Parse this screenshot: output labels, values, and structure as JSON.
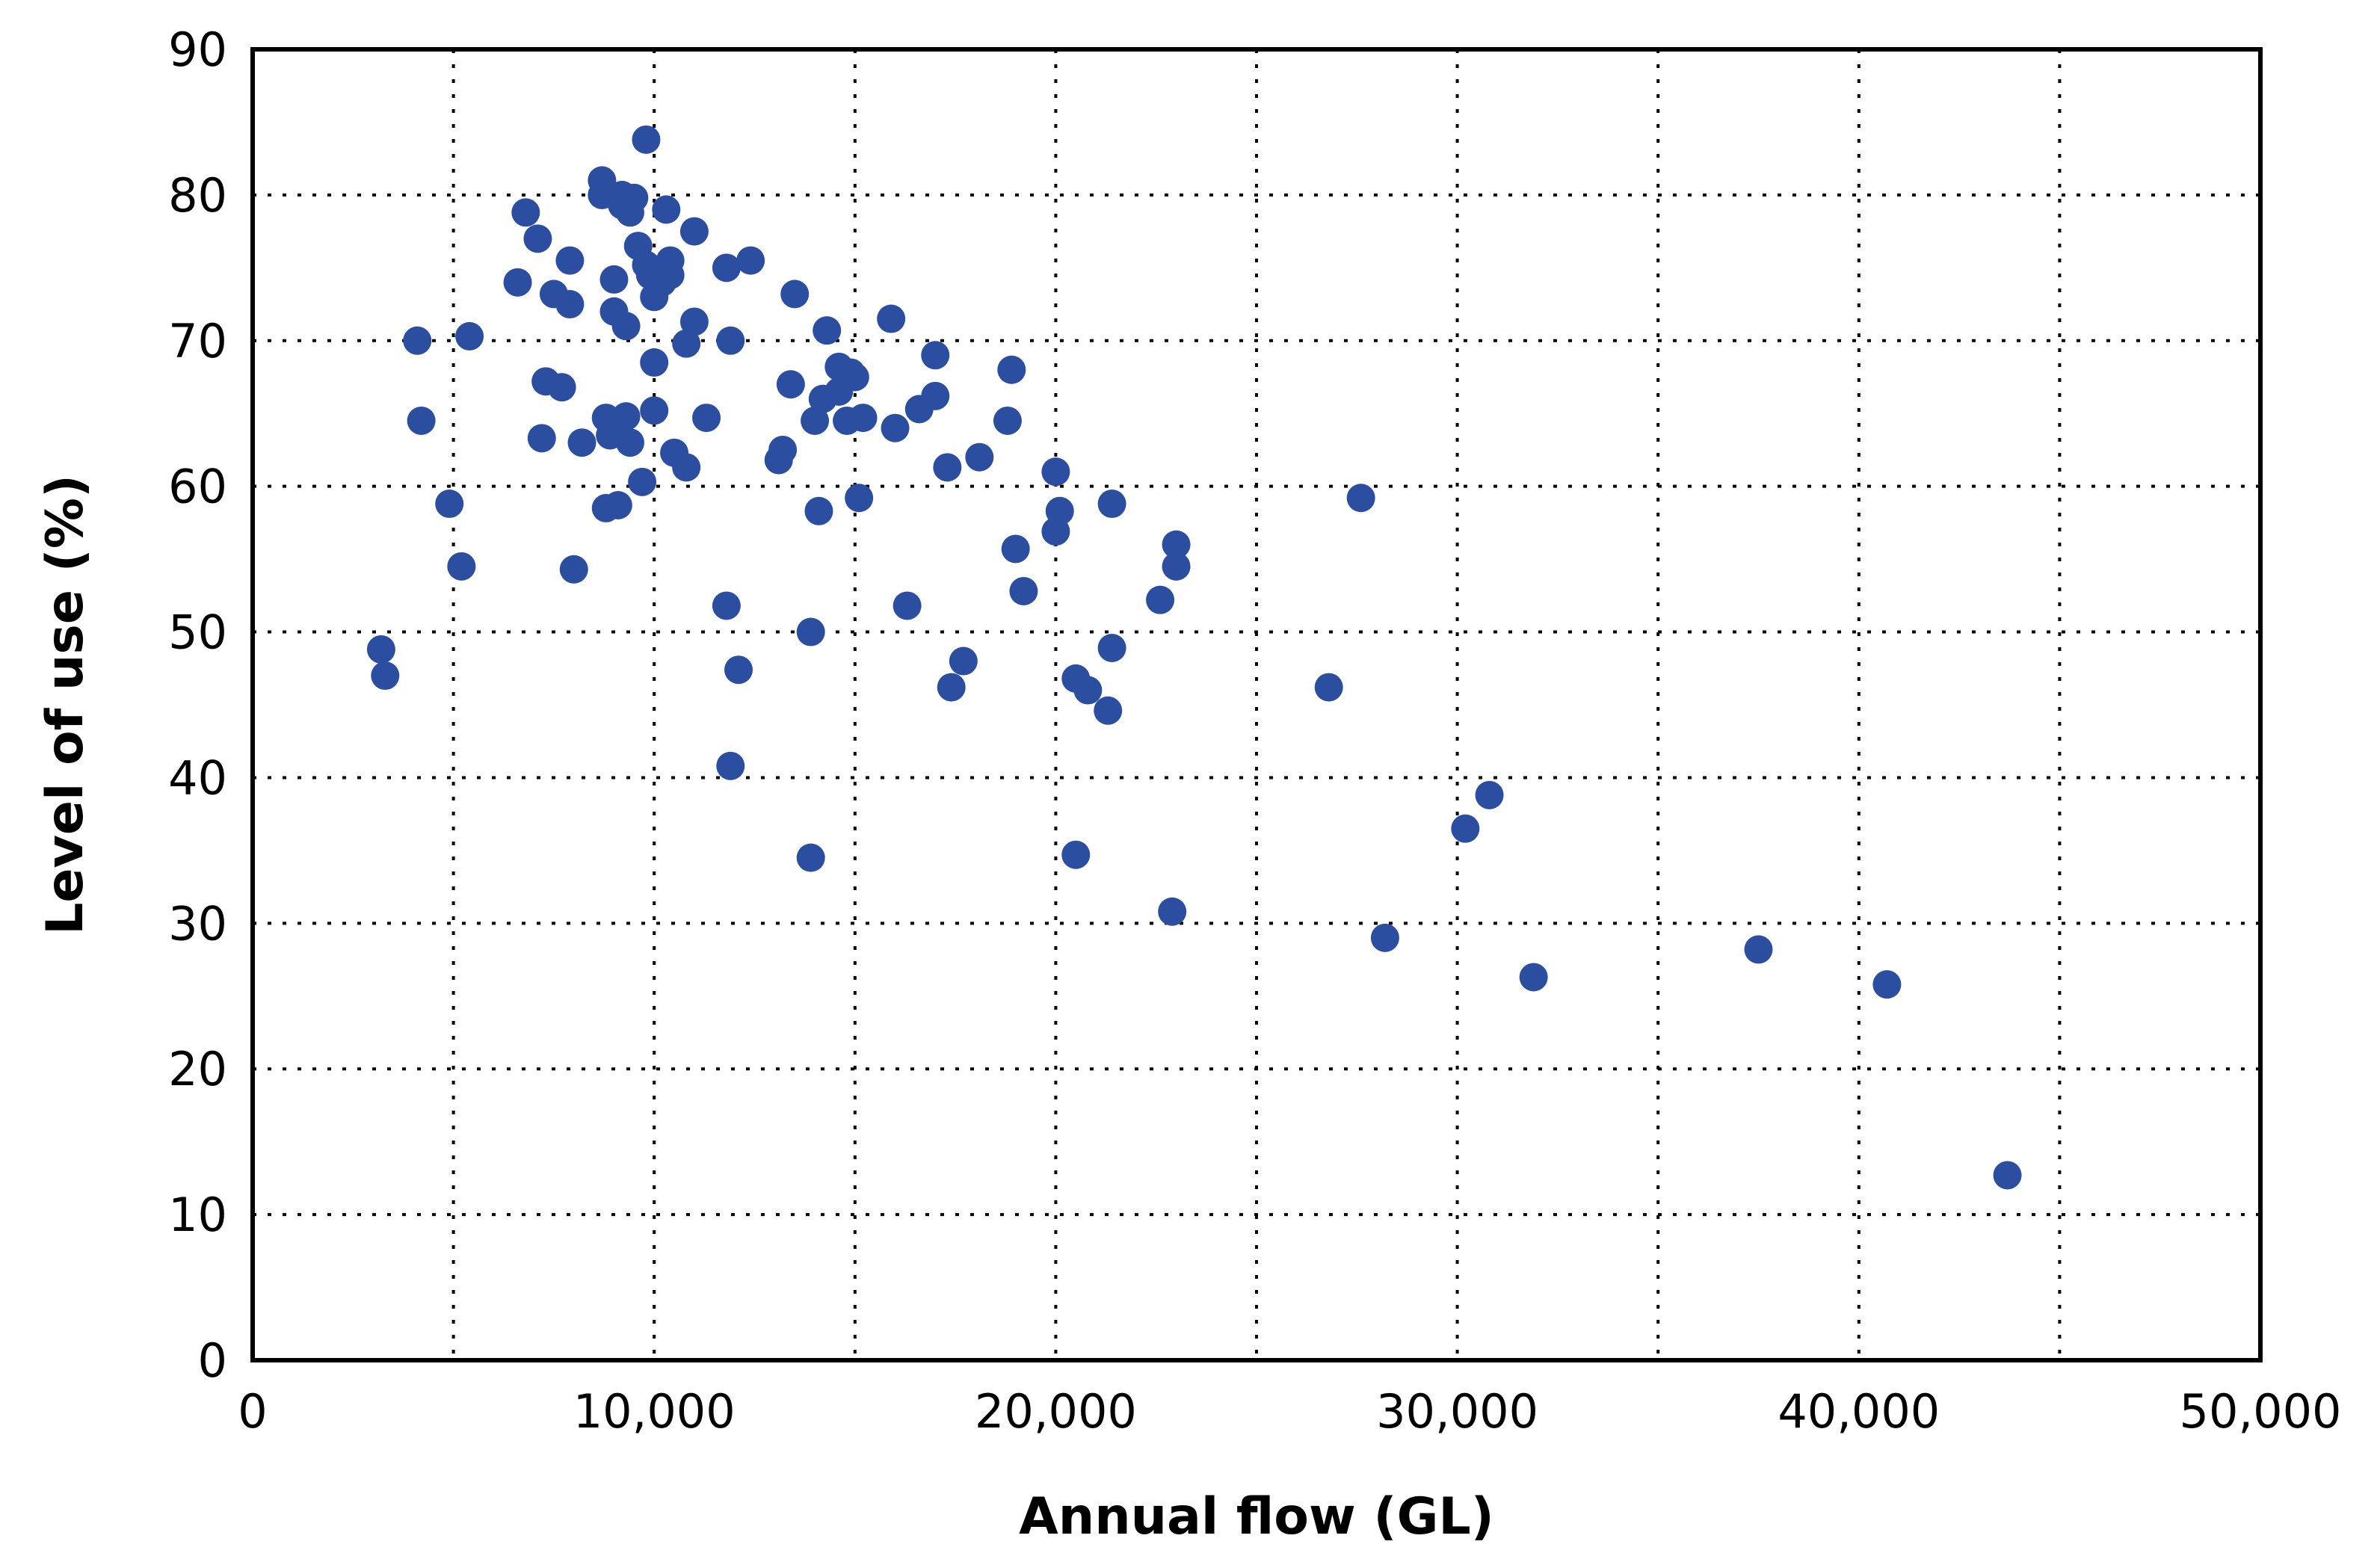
{
  "chart_data": {
    "type": "scatter",
    "title": "",
    "xlabel": "Annual flow (GL)",
    "ylabel": "Level of use (%)",
    "xlim": [
      0,
      50000
    ],
    "ylim": [
      0,
      90
    ],
    "x_ticks": [
      0,
      10000,
      20000,
      30000,
      40000,
      50000
    ],
    "x_tick_labels": [
      "0",
      "10,000",
      "20,000",
      "30,000",
      "40,000",
      "50,000"
    ],
    "y_ticks": [
      0,
      10,
      20,
      30,
      40,
      50,
      60,
      70,
      80,
      90
    ],
    "y_tick_labels": [
      "0",
      "10",
      "20",
      "30",
      "40",
      "50",
      "60",
      "70",
      "80",
      "90"
    ],
    "grid": true,
    "grid_style": "dotted",
    "marker_color": "#2b4ea1",
    "series": [
      {
        "points": [
          [
            3200,
            48.8
          ],
          [
            3300,
            47.0
          ],
          [
            4100,
            70.0
          ],
          [
            4200,
            64.5
          ],
          [
            4900,
            58.8
          ],
          [
            5200,
            54.5
          ],
          [
            5400,
            70.3
          ],
          [
            6600,
            74.0
          ],
          [
            6800,
            78.8
          ],
          [
            7100,
            77.0
          ],
          [
            7200,
            63.3
          ],
          [
            7300,
            67.2
          ],
          [
            7500,
            73.2
          ],
          [
            7700,
            66.8
          ],
          [
            7900,
            72.5
          ],
          [
            7900,
            75.5
          ],
          [
            8000,
            54.3
          ],
          [
            8200,
            63.0
          ],
          [
            8700,
            81.0
          ],
          [
            8700,
            80.0
          ],
          [
            8800,
            64.7
          ],
          [
            8800,
            58.5
          ],
          [
            8900,
            63.5
          ],
          [
            9000,
            74.2
          ],
          [
            9000,
            72.0
          ],
          [
            9100,
            58.7
          ],
          [
            9200,
            80.0
          ],
          [
            9200,
            79.3
          ],
          [
            9300,
            64.8
          ],
          [
            9300,
            71.0
          ],
          [
            9400,
            78.8
          ],
          [
            9400,
            63.0
          ],
          [
            9500,
            79.8
          ],
          [
            9600,
            76.5
          ],
          [
            9700,
            60.3
          ],
          [
            9800,
            83.8
          ],
          [
            9800,
            75.2
          ],
          [
            9900,
            74.5
          ],
          [
            10000,
            65.2
          ],
          [
            10000,
            68.5
          ],
          [
            10000,
            73.0
          ],
          [
            10200,
            74.0
          ],
          [
            10300,
            79.0
          ],
          [
            10400,
            75.5
          ],
          [
            10400,
            74.5
          ],
          [
            10500,
            62.3
          ],
          [
            10800,
            61.3
          ],
          [
            10800,
            69.8
          ],
          [
            11000,
            77.5
          ],
          [
            11000,
            71.3
          ],
          [
            11300,
            64.7
          ],
          [
            11800,
            75.0
          ],
          [
            11800,
            51.8
          ],
          [
            11900,
            70.0
          ],
          [
            11900,
            40.8
          ],
          [
            12100,
            47.4
          ],
          [
            12400,
            75.5
          ],
          [
            13100,
            61.8
          ],
          [
            13200,
            62.5
          ],
          [
            13400,
            67.0
          ],
          [
            13500,
            73.2
          ],
          [
            13900,
            34.5
          ],
          [
            13900,
            50.0
          ],
          [
            14000,
            64.5
          ],
          [
            14100,
            58.3
          ],
          [
            14200,
            66.0
          ],
          [
            14300,
            70.7
          ],
          [
            14600,
            68.2
          ],
          [
            14600,
            66.5
          ],
          [
            14800,
            64.5
          ],
          [
            14900,
            67.8
          ],
          [
            15000,
            67.5
          ],
          [
            15100,
            59.2
          ],
          [
            15200,
            64.7
          ],
          [
            15900,
            71.5
          ],
          [
            16000,
            64.0
          ],
          [
            16300,
            51.8
          ],
          [
            16600,
            65.3
          ],
          [
            17000,
            66.2
          ],
          [
            17000,
            69.0
          ],
          [
            17300,
            61.3
          ],
          [
            17400,
            46.2
          ],
          [
            17700,
            48.0
          ],
          [
            18100,
            62.0
          ],
          [
            18800,
            64.5
          ],
          [
            18900,
            68.0
          ],
          [
            19000,
            55.7
          ],
          [
            19200,
            52.8
          ],
          [
            20000,
            61.0
          ],
          [
            20000,
            56.9
          ],
          [
            20100,
            58.3
          ],
          [
            20500,
            34.7
          ],
          [
            20500,
            46.8
          ],
          [
            20800,
            46.0
          ],
          [
            21300,
            44.6
          ],
          [
            21400,
            58.8
          ],
          [
            21400,
            48.9
          ],
          [
            22600,
            52.2
          ],
          [
            22900,
            30.8
          ],
          [
            23000,
            54.5
          ],
          [
            23000,
            56.0
          ],
          [
            26800,
            46.2
          ],
          [
            27600,
            59.2
          ],
          [
            28200,
            29.0
          ],
          [
            30200,
            36.5
          ],
          [
            30800,
            38.8
          ],
          [
            31900,
            26.3
          ],
          [
            37500,
            28.2
          ],
          [
            40700,
            25.8
          ],
          [
            43700,
            12.7
          ]
        ]
      }
    ]
  }
}
